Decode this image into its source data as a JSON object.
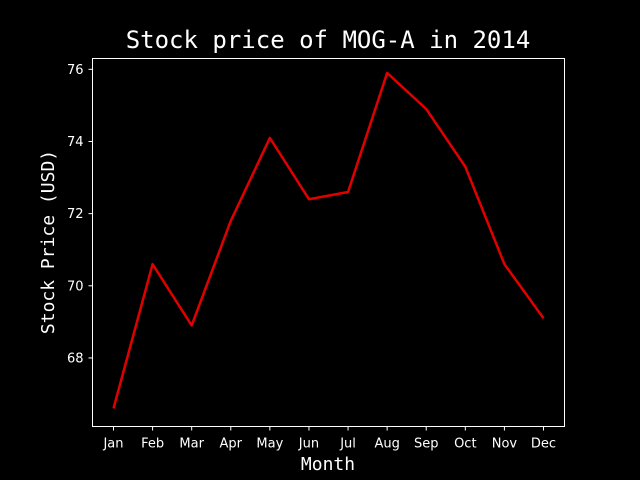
{
  "colors": {
    "background": "#000000",
    "foreground": "#ffffff",
    "series_line": "#e00000"
  },
  "chart_data": {
    "type": "line",
    "title": "Stock price of MOG-A in 2014",
    "xlabel": "Month",
    "ylabel": "Stock Price (USD)",
    "categories": [
      "Jan",
      "Feb",
      "Mar",
      "Apr",
      "May",
      "Jun",
      "Jul",
      "Aug",
      "Sep",
      "Oct",
      "Nov",
      "Dec"
    ],
    "series": [
      {
        "values": [
          66.6,
          70.6,
          68.9,
          71.8,
          74.1,
          72.4,
          72.6,
          75.9,
          74.9,
          73.3,
          70.6,
          69.1
        ]
      }
    ],
    "yticks": [
      68,
      70,
      72,
      74,
      76
    ],
    "ylim": [
      66.1,
      76.3
    ],
    "grid": false,
    "legend": "none"
  }
}
